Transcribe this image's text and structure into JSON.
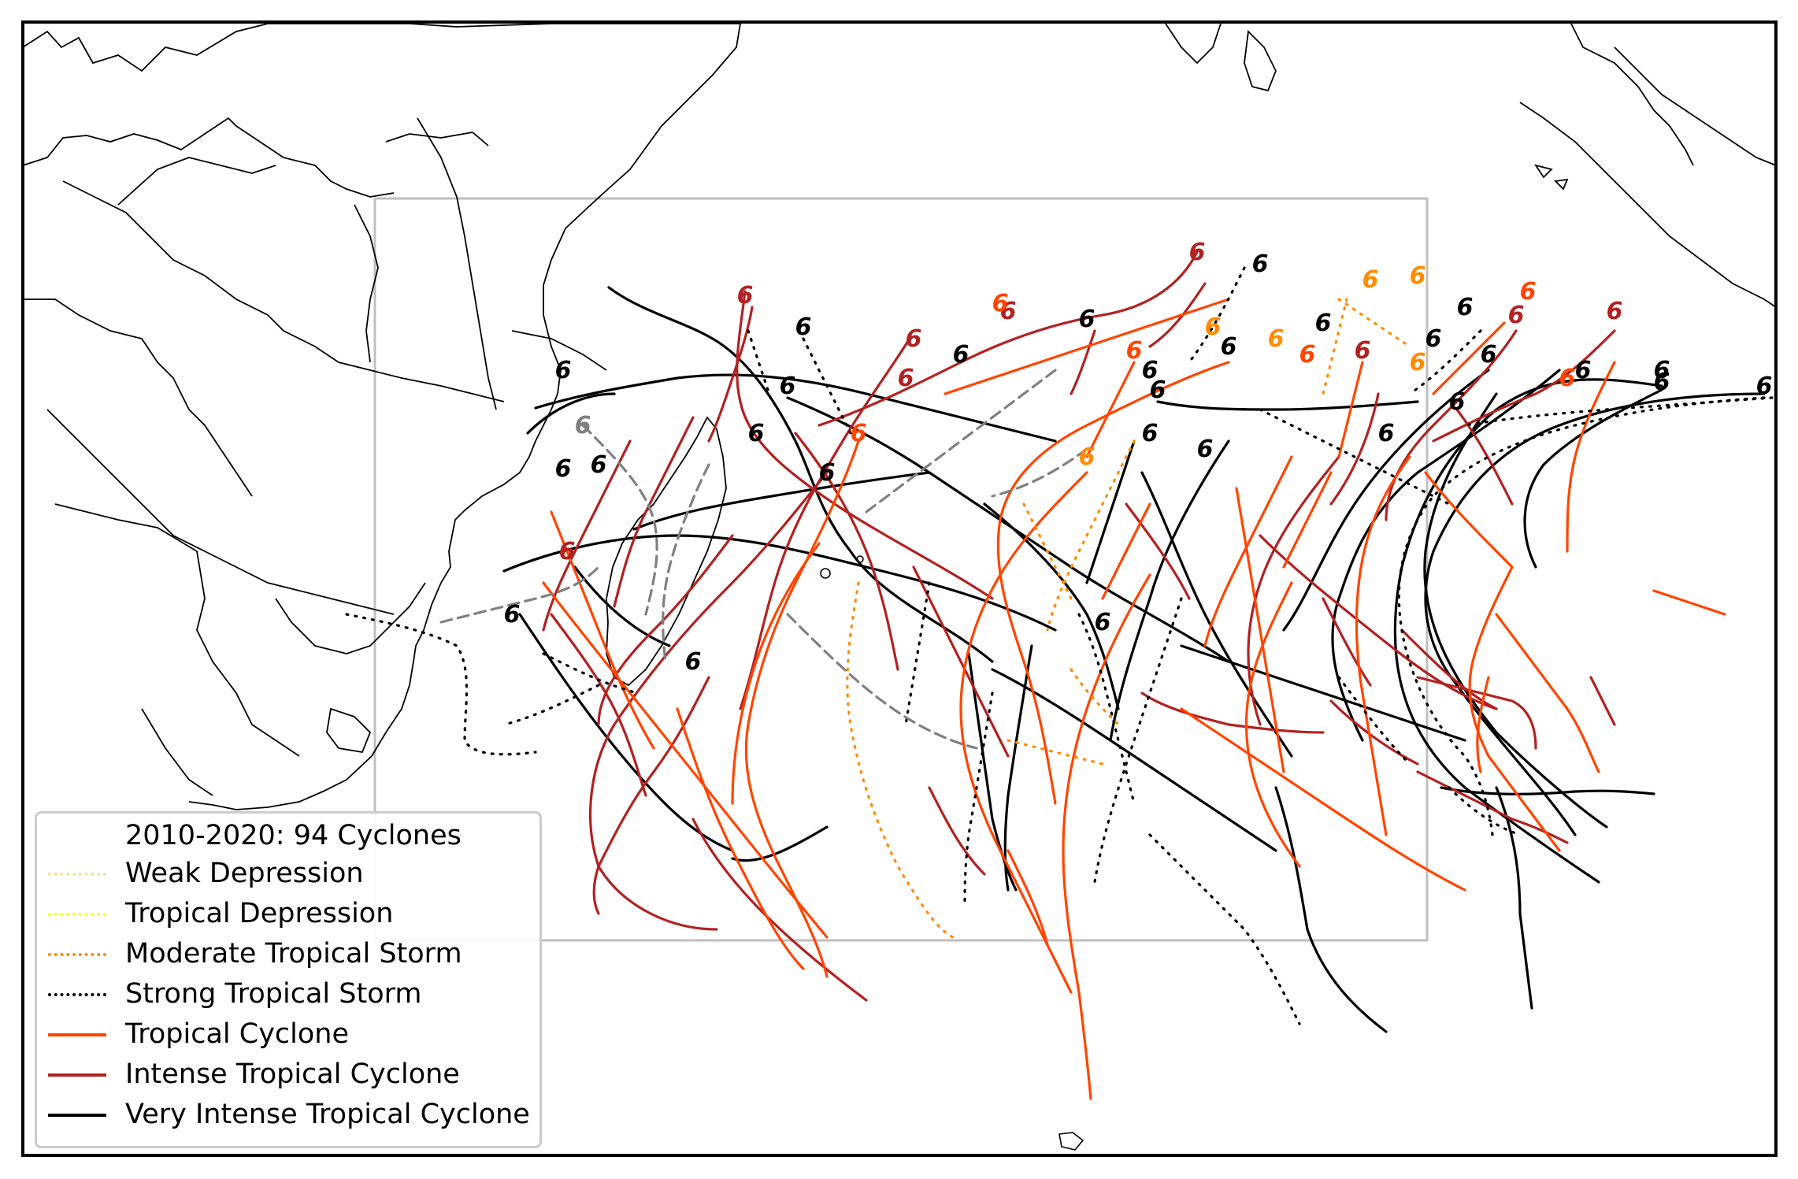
{
  "legend": {
    "title": "2010-2020: 94 Cyclones",
    "items": [
      {
        "label": "Weak Depression",
        "color": "#f0e68c",
        "style": "dotted"
      },
      {
        "label": "Tropical Depression",
        "color": "#ffff00",
        "style": "dotted"
      },
      {
        "label": "Moderate Tropical Storm",
        "color": "#ff8c00",
        "style": "dotted"
      },
      {
        "label": "Strong Tropical Storm",
        "color": "#000000",
        "style": "dotted"
      },
      {
        "label": "Tropical Cyclone",
        "color": "#ff4500",
        "style": "solid"
      },
      {
        "label": "Intense Tropical Cyclone",
        "color": "#b22222",
        "style": "solid"
      },
      {
        "label": "Very Intense Tropical Cyclone",
        "color": "#000000",
        "style": "solid"
      }
    ]
  },
  "colors": {
    "frame": "#000000",
    "coastline": "#000000",
    "basin_box": "#bfbfbf",
    "subtropical_track": "#808080"
  },
  "icons": {
    "genesis_marker": "cyclone-symbol-icon"
  }
}
